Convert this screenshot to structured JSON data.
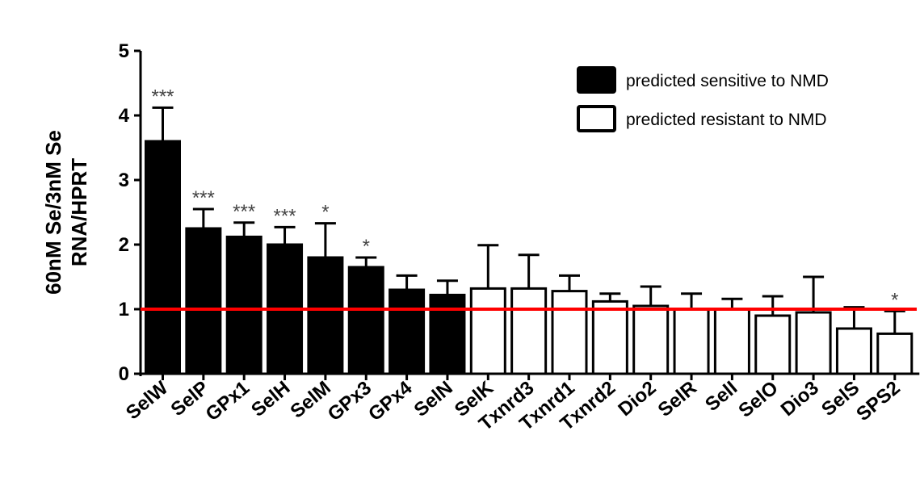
{
  "chart_data": {
    "type": "bar",
    "ylabel": [
      "60nM Se/3nM Se",
      "RNA/HPRT"
    ],
    "ylim": [
      0,
      5
    ],
    "yticks": [
      "0",
      "1",
      "2",
      "3",
      "4",
      "5"
    ],
    "reference_line": {
      "y": 1,
      "color": "#ff0000"
    },
    "grid": false,
    "legend_position": "top-right",
    "legend": [
      {
        "name": "predicted sensitive to NMD",
        "fill": "#000000"
      },
      {
        "name": "predicted resistant to NMD",
        "fill": "#ffffff"
      }
    ],
    "categories": [
      "SelW",
      "SelP",
      "GPx1",
      "SelH",
      "SelM",
      "GPx3",
      "GPx4",
      "SelN",
      "SelK",
      "Txnrd3",
      "Txnrd1",
      "Txnrd2",
      "Dio2",
      "SelR",
      "SelI",
      "SelO",
      "Dio3",
      "SelS",
      "SPS2"
    ],
    "values": [
      3.6,
      2.25,
      2.12,
      2.0,
      1.8,
      1.65,
      1.3,
      1.22,
      1.32,
      1.32,
      1.28,
      1.12,
      1.05,
      1.0,
      1.0,
      0.9,
      0.95,
      0.7,
      0.62
    ],
    "errors": [
      0.52,
      0.3,
      0.22,
      0.27,
      0.53,
      0.15,
      0.22,
      0.22,
      0.67,
      0.52,
      0.24,
      0.12,
      0.3,
      0.24,
      0.16,
      0.3,
      0.55,
      0.33,
      0.35
    ],
    "group": [
      "sensitive",
      "sensitive",
      "sensitive",
      "sensitive",
      "sensitive",
      "sensitive",
      "sensitive",
      "sensitive",
      "resistant",
      "resistant",
      "resistant",
      "resistant",
      "resistant",
      "resistant",
      "resistant",
      "resistant",
      "resistant",
      "resistant",
      "resistant"
    ],
    "significance": [
      "***",
      "***",
      "***",
      "***",
      "*",
      "*",
      "",
      "",
      "",
      "",
      "",
      "",
      "",
      "",
      "",
      "",
      "",
      "",
      "*"
    ]
  }
}
